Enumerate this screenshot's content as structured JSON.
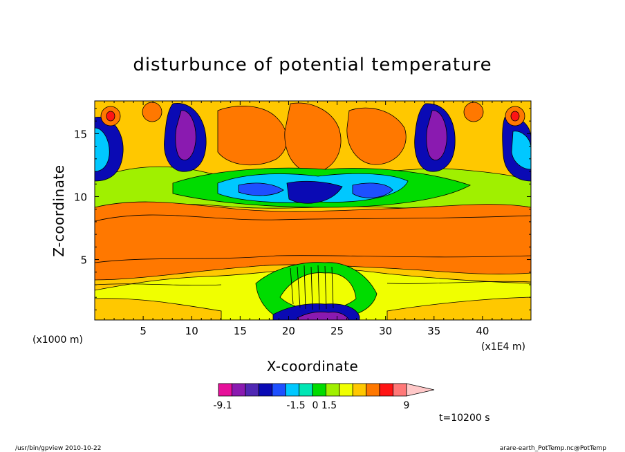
{
  "chart_data": {
    "type": "heatmap",
    "title": "disturbunce of potential temperature",
    "xlabel": "X-coordinate",
    "ylabel": "Z-coordinate",
    "x_unit_label": "(x1E4 m)",
    "y_unit_label": "(x1000 m)",
    "xlim": [
      0,
      45
    ],
    "ylim": [
      0.2,
      17.6
    ],
    "xticks": [
      5,
      10,
      15,
      20,
      25,
      30,
      35,
      40
    ],
    "yticks": [
      5,
      10,
      15
    ],
    "colorbar": {
      "colors": [
        "#e6109a",
        "#8a1ab0",
        "#5028b4",
        "#0a0ab4",
        "#1e50ff",
        "#00c8ff",
        "#00e6b4",
        "#00dc00",
        "#a0f000",
        "#f0ff00",
        "#ffc800",
        "#ff7800",
        "#ff1414",
        "#ff7878",
        "#ffc8c8"
      ],
      "labels": [
        {
          "text": "-9.1",
          "value": -9.1
        },
        {
          "text": "-1.5",
          "value": -1.5
        },
        {
          "text": "0",
          "value": 0
        },
        {
          "text": "1.5",
          "value": 1.5
        },
        {
          "text": "9",
          "value": 9
        }
      ]
    },
    "time_label": "t=10200 s"
  },
  "footer": {
    "left": "/usr/bin/gpview   2010-10-22",
    "right": "arare-earth_PotTemp.nc@PotTemp"
  }
}
